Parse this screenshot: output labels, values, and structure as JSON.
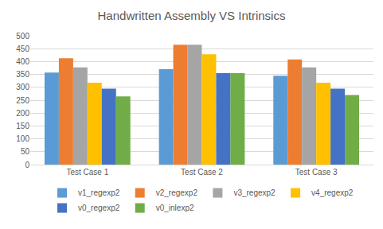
{
  "chart_data": {
    "type": "bar",
    "title": "Handwritten Assembly VS Intrinsics",
    "categories": [
      "Test Case 1",
      "Test Case 2",
      "Test Case 3"
    ],
    "series": [
      {
        "name": "v1_regexp2",
        "color": "#5b9bd5",
        "values": [
          357,
          370,
          345
        ]
      },
      {
        "name": "v2_regexp2",
        "color": "#ed7d31",
        "values": [
          413,
          465,
          408
        ]
      },
      {
        "name": "v3_regexp2",
        "color": "#a5a5a5",
        "values": [
          377,
          465,
          377
        ]
      },
      {
        "name": "v4_regexp2",
        "color": "#ffc000",
        "values": [
          318,
          428,
          318
        ]
      },
      {
        "name": "v0_regexp2",
        "color": "#4472c4",
        "values": [
          295,
          355,
          295
        ]
      },
      {
        "name": "v0_inlexp2",
        "color": "#70ad47",
        "values": [
          265,
          355,
          270
        ]
      }
    ],
    "ylim": [
      0,
      500
    ],
    "yticks": [
      0,
      50,
      100,
      150,
      200,
      250,
      300,
      350,
      400,
      450,
      500
    ],
    "grid": true,
    "legend": "bottom"
  }
}
